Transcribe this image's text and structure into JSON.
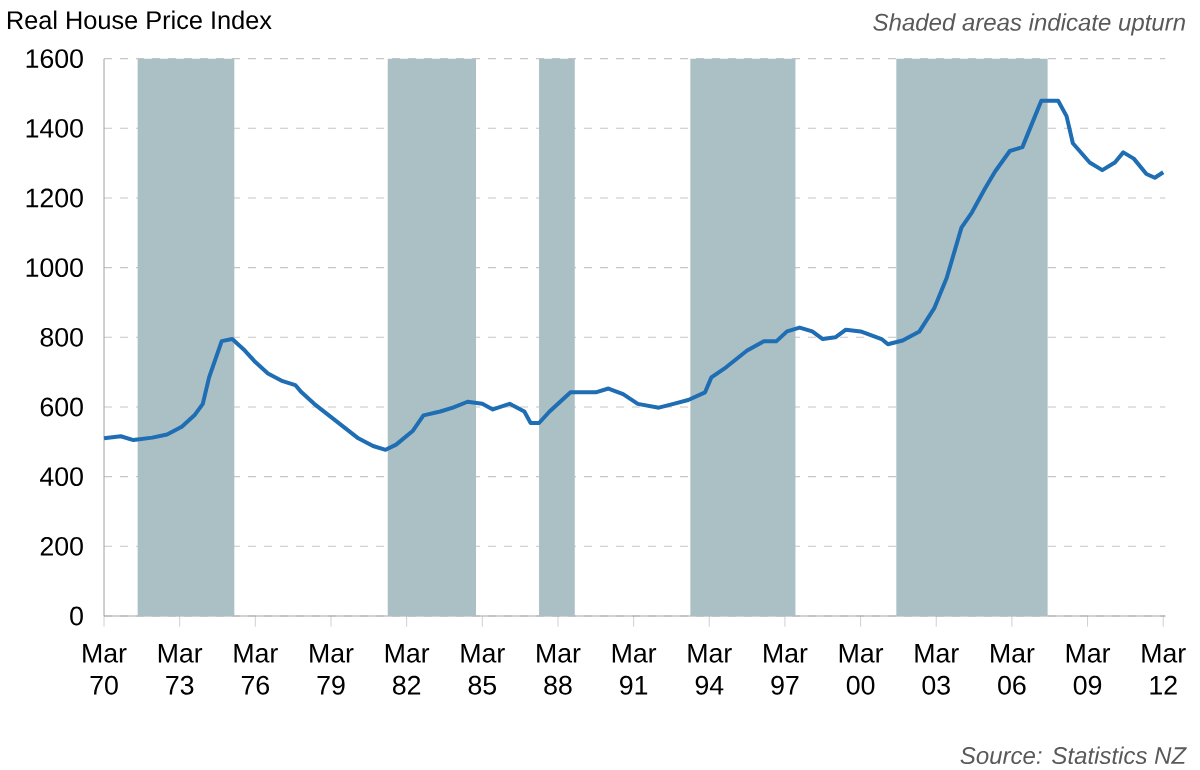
{
  "chart_data": {
    "type": "line",
    "title": "Real House Price Index",
    "annotations": [
      "Shaded areas indicate upturn",
      "Source: Statistics NZ"
    ],
    "x": [
      "1970-03",
      "1970-11",
      "1971-05",
      "1972-02",
      "1972-09",
      "1973-04",
      "1973-10",
      "1974-02",
      "1974-05",
      "1974-11",
      "1975-04",
      "1975-10",
      "1976-03",
      "1976-09",
      "1977-04",
      "1977-10",
      "1978-01",
      "1978-07",
      "1979-02",
      "1979-09",
      "1980-04",
      "1980-11",
      "1981-05",
      "1981-10",
      "1982-06",
      "1982-11",
      "1983-07",
      "1984-01",
      "1984-08",
      "1985-03",
      "1985-08",
      "1986-04",
      "1986-11",
      "1987-02",
      "1987-06",
      "1987-11",
      "1988-09",
      "1989-04",
      "1989-09",
      "1990-03",
      "1990-10",
      "1991-05",
      "1992-03",
      "1992-10",
      "1993-05",
      "1994-01",
      "1994-04",
      "1994-11",
      "1995-09",
      "1996-05",
      "1996-11",
      "1997-04",
      "1997-10",
      "1998-04",
      "1998-09",
      "1999-03",
      "1999-08",
      "2000-03",
      "2001-01",
      "2001-04",
      "2001-11",
      "2002-07",
      "2003-02",
      "2003-08",
      "2004-03",
      "2004-08",
      "2005-02",
      "2005-07",
      "2006-02",
      "2006-08",
      "2007-02",
      "2007-05",
      "2008-01",
      "2008-05",
      "2008-08",
      "2009-04",
      "2009-10",
      "2010-04",
      "2010-08",
      "2011-01",
      "2011-07",
      "2011-11",
      "2012-03"
    ],
    "series": [
      {
        "color": "#1f6db3",
        "values": [
          510,
          516,
          505,
          512,
          521,
          543,
          576,
          609,
          685,
          789,
          795,
          762,
          729,
          696,
          674,
          663,
          642,
          609,
          576,
          543,
          510,
          488,
          477,
          492,
          532,
          576,
          587,
          598,
          615,
          609,
          593,
          609,
          587,
          554,
          554,
          587,
          642,
          642,
          642,
          653,
          637,
          609,
          598,
          609,
          620,
          642,
          685,
          714,
          762,
          789,
          789,
          817,
          828,
          817,
          795,
          800,
          822,
          817,
          795,
          780,
          791,
          817,
          883,
          971,
          1115,
          1159,
          1225,
          1276,
          1335,
          1346,
          1435,
          1479,
          1479,
          1435,
          1357,
          1302,
          1280,
          1302,
          1331,
          1313,
          1269,
          1258,
          1274
        ]
      }
    ],
    "bands": [
      {
        "axis": "x",
        "from": "1971-07",
        "to": "1975-05",
        "color": "#abc0c5"
      },
      {
        "axis": "x",
        "from": "1981-06",
        "to": "1984-12",
        "color": "#abc0c5"
      },
      {
        "axis": "x",
        "from": "1987-06",
        "to": "1988-11",
        "color": "#abc0c5"
      },
      {
        "axis": "x",
        "from": "1993-06",
        "to": "1997-08",
        "color": "#abc0c5"
      },
      {
        "axis": "x",
        "from": "2001-08",
        "to": "2007-08",
        "color": "#abc0c5"
      }
    ],
    "xlim": [
      "1970-03",
      "2012-04"
    ],
    "xticks": [
      {
        "value": "1970-03",
        "label": "Mar 70"
      },
      {
        "value": "1973-03",
        "label": "Mar 73"
      },
      {
        "value": "1976-03",
        "label": "Mar 76"
      },
      {
        "value": "1979-03",
        "label": "Mar 79"
      },
      {
        "value": "1982-03",
        "label": "Mar 82"
      },
      {
        "value": "1985-03",
        "label": "Mar 85"
      },
      {
        "value": "1988-03",
        "label": "Mar 88"
      },
      {
        "value": "1991-03",
        "label": "Mar 91"
      },
      {
        "value": "1994-03",
        "label": "Mar 94"
      },
      {
        "value": "1997-03",
        "label": "Mar 97"
      },
      {
        "value": "2000-03",
        "label": "Mar 00"
      },
      {
        "value": "2003-03",
        "label": "Mar 03"
      },
      {
        "value": "2006-03",
        "label": "Mar 06"
      },
      {
        "value": "2009-03",
        "label": "Mar 09"
      },
      {
        "value": "2012-03",
        "label": "Mar 12"
      }
    ],
    "ylim": [
      0,
      1600
    ],
    "yticks": [
      0,
      200,
      400,
      600,
      800,
      1000,
      1200,
      1400,
      1600
    ],
    "grid": "y",
    "marker": "none",
    "line_style": "solid"
  }
}
